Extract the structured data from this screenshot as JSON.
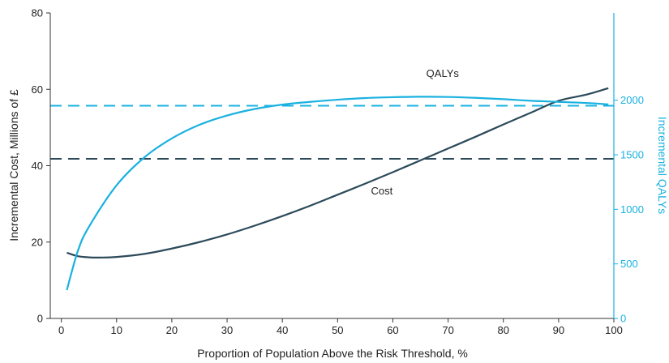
{
  "chart_data": {
    "type": "line",
    "title": "",
    "xlabel": "Proportion of Population Above the Risk Threshold, %",
    "ylabel_left": "Incremental Cost, Millions of £",
    "ylabel_right": "Incremental QALYs",
    "xlim": [
      -2,
      100
    ],
    "ylim_left": [
      0,
      80
    ],
    "ylim_right": [
      0,
      2800
    ],
    "x_ticks": [
      0,
      10,
      20,
      30,
      40,
      50,
      60,
      70,
      80,
      90,
      100
    ],
    "y_left_ticks": [
      0,
      20,
      40,
      60,
      80
    ],
    "y_right_ticks": [
      0,
      500,
      1000,
      1500,
      2000
    ],
    "grid": false,
    "colors": {
      "cost": "#2c4a5a",
      "qalys": "#1ab1e0",
      "axis": "#333333",
      "right_axis": "#1ab1e0"
    },
    "series": [
      {
        "name": "Cost",
        "axis": "left",
        "x": [
          1,
          3,
          5,
          7,
          10,
          15,
          20,
          25,
          30,
          35,
          40,
          45,
          50,
          55,
          60,
          65,
          70,
          75,
          80,
          85,
          90,
          95,
          99
        ],
        "values": [
          17.2,
          16.3,
          16.0,
          15.95,
          16.1,
          16.9,
          18.3,
          20.0,
          22.0,
          24.3,
          26.8,
          29.5,
          32.4,
          35.3,
          38.3,
          41.4,
          44.5,
          47.6,
          50.8,
          53.9,
          57.0,
          58.6,
          60.3
        ]
      },
      {
        "name": "QALYs",
        "axis": "right",
        "x": [
          1,
          3,
          5,
          10,
          15,
          20,
          25,
          30,
          35,
          40,
          45,
          50,
          55,
          60,
          65,
          70,
          75,
          80,
          85,
          90,
          95,
          99
        ],
        "values": [
          260,
          620,
          840,
          1220,
          1475,
          1650,
          1775,
          1860,
          1920,
          1960,
          1985,
          2005,
          2020,
          2028,
          2032,
          2030,
          2022,
          2010,
          1995,
          1985,
          1975,
          1962
        ]
      }
    ],
    "reference_lines": [
      {
        "axis": "left",
        "value": 41.8,
        "color": "#2c4a5a"
      },
      {
        "axis": "left",
        "value": 55.7,
        "color": "#1ab1e0"
      }
    ],
    "annotations": [
      {
        "text": "QALYs",
        "x": 69,
        "y_left": 63.2
      },
      {
        "text": "Cost",
        "x": 58,
        "y_left": 32.5
      }
    ]
  }
}
